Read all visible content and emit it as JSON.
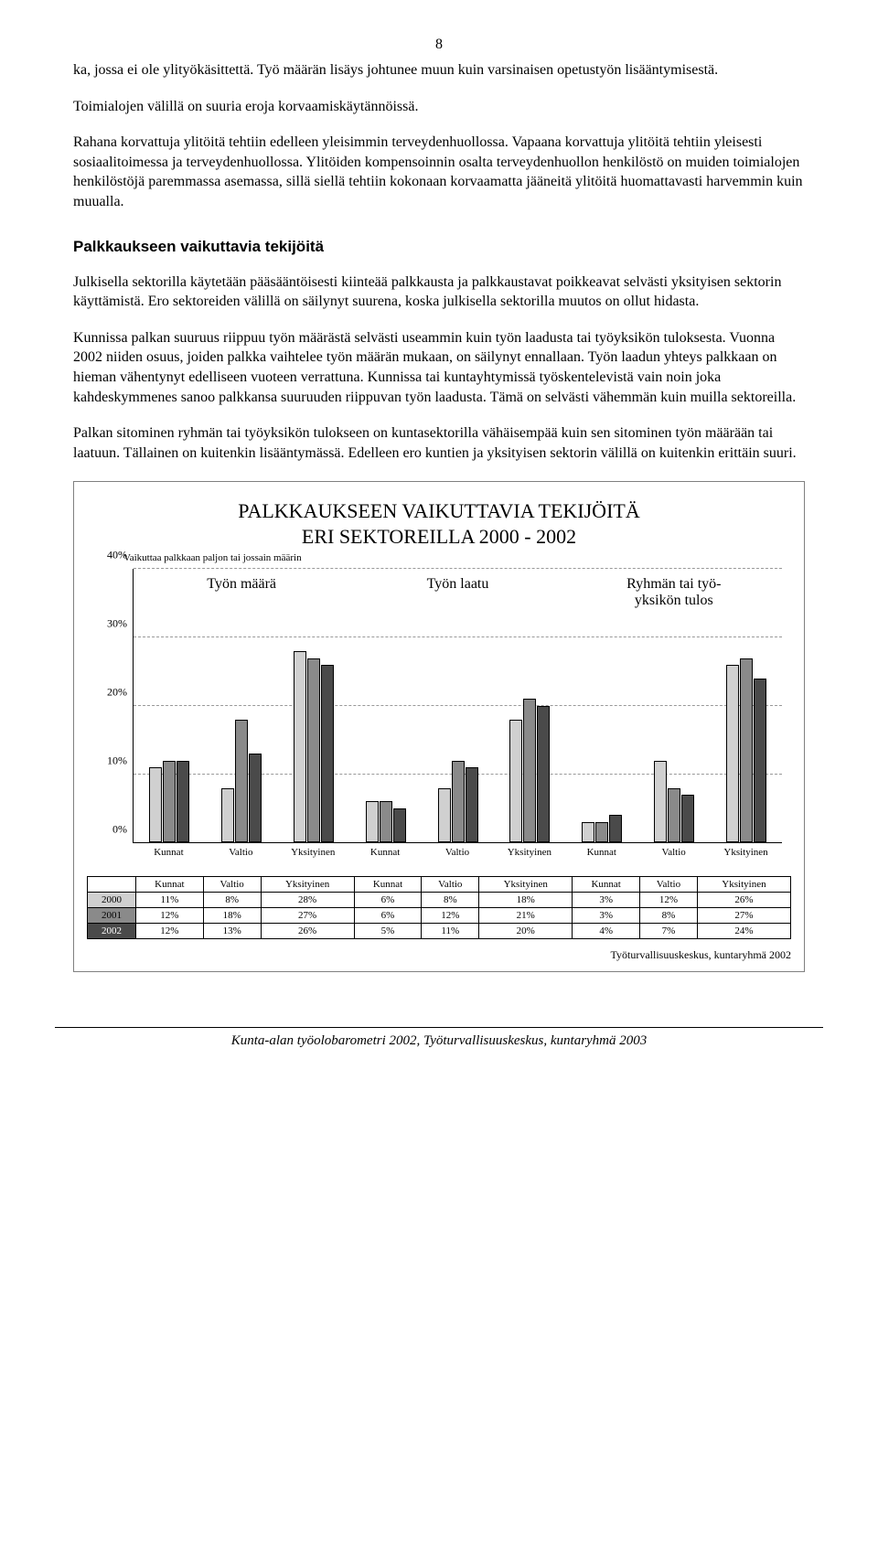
{
  "page_number": "8",
  "paragraphs": {
    "p1": "ka, jossa ei ole ylityökäsittettä. Työ määrän lisäys johtunee muun kuin varsinaisen opetustyön lisääntymisestä.",
    "p2": "Toimialojen välillä on suuria eroja korvaamiskäytännöissä.",
    "p3": "Rahana korvattuja ylitöitä tehtiin edelleen yleisimmin terveydenhuollossa. Vapaana korvattuja ylitöitä tehtiin yleisesti sosiaalitoimessa ja terveydenhuollossa. Ylitöiden kompensoinnin osalta terveydenhuollon henkilöstö on muiden toimialojen henkilöstöjä paremmassa asemassa, sillä siellä tehtiin kokonaan korvaamatta jääneitä ylitöitä huomattavasti harvemmin kuin muualla.",
    "section_title": "Palkkaukseen vaikuttavia tekijöitä",
    "p4": "Julkisella sektorilla käytetään pääsääntöisesti kiinteää palkkausta ja palkkaustavat poikkeavat selvästi yksityisen sektorin käyttämistä. Ero sektoreiden välillä on säilynyt suurena, koska julkisella sektorilla muutos on ollut hidasta.",
    "p5": "Kunnissa palkan suuruus riippuu työn määrästä selvästi useammin kuin työn laadusta tai työyksikön tuloksesta. Vuonna 2002 niiden osuus, joiden palkka vaihtelee työn määrän mukaan, on säilynyt ennallaan. Työn laadun yhteys palkkaan on hieman vähentynyt edelliseen vuoteen verrattuna. Kunnissa tai kuntayhtymissä työskentelevistä vain noin joka kahdeskymmenes sanoo palkkansa suuruuden riippuvan työn laadusta. Tämä on selvästi vähemmän kuin muilla sektoreilla.",
    "p6": "Palkan sitominen ryhmän tai työyksikön tulokseen on kuntasektorilla vähäisempää kuin sen sitominen työn määrään tai laatuun. Tällainen on kuitenkin lisääntymässä. Edelleen ero kuntien ja yksityisen sektorin välillä on kuitenkin erittäin suuri."
  },
  "chart": {
    "type": "bar",
    "title_line1": "PALKKAUKSEEN VAIKUTTAVIA TEKIJÖITÄ",
    "title_line2": "ERI SEKTOREILLA 2000 - 2002",
    "subtitle": "Vaikuttaa palkkaan paljon tai jossain määrin",
    "y_ticks": [
      "0%",
      "10%",
      "20%",
      "30%",
      "40%"
    ],
    "y_max": 40,
    "group_labels": [
      "Työn määrä",
      "Työn laatu",
      "Ryhmän tai työ-\nyksikön tulos"
    ],
    "categories": [
      "Kunnat",
      "Valtio",
      "Yksityinen",
      "Kunnat",
      "Valtio",
      "Yksityinen",
      "Kunnat",
      "Valtio",
      "Yksityinen"
    ],
    "series_colors": [
      "#d0d0d0",
      "#8a8a8a",
      "#4a4a4a"
    ],
    "rows": [
      {
        "year": "2000",
        "values": [
          "11%",
          "8%",
          "28%",
          "6%",
          "8%",
          "18%",
          "3%",
          "12%",
          "26%"
        ]
      },
      {
        "year": "2001",
        "values": [
          "12%",
          "18%",
          "27%",
          "6%",
          "12%",
          "21%",
          "3%",
          "8%",
          "27%"
        ]
      },
      {
        "year": "2002",
        "values": [
          "12%",
          "13%",
          "26%",
          "5%",
          "11%",
          "20%",
          "4%",
          "7%",
          "24%"
        ]
      }
    ],
    "numeric_values": [
      [
        11,
        8,
        28,
        6,
        8,
        18,
        3,
        12,
        26
      ],
      [
        12,
        18,
        27,
        6,
        12,
        21,
        3,
        8,
        27
      ],
      [
        12,
        13,
        26,
        5,
        11,
        20,
        4,
        7,
        24
      ]
    ],
    "source": "Työturvallisuuskeskus, kuntaryhmä 2002"
  },
  "footer": "Kunta-alan työolobarometri 2002, Työturvallisuuskeskus, kuntaryhmä 2003"
}
